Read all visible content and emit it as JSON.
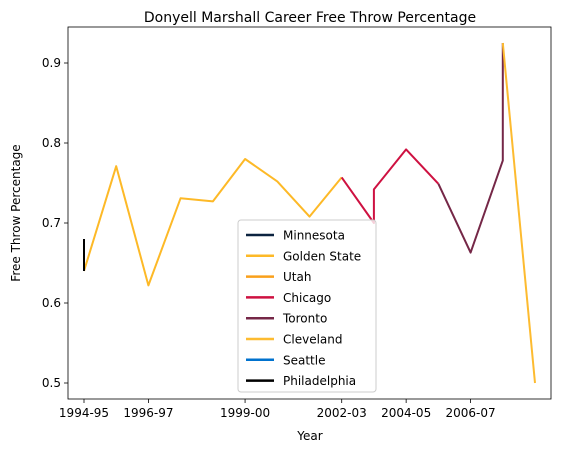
{
  "chart_data": {
    "type": "line",
    "title": "Donyell Marshall Career Free Throw Percentage",
    "xlabel": "Year",
    "ylabel": "Free Throw Percentage",
    "categories": [
      "1994-95",
      "1995-96",
      "1996-97",
      "1997-98",
      "1998-99",
      "1999-00",
      "2000-01",
      "2001-02",
      "2002-03",
      "2003-04",
      "2004-05",
      "2005-06",
      "2006-07",
      "2007-08",
      "2008-09"
    ],
    "xticks": [
      "1994-95",
      "1996-97",
      "1999-00",
      "2002-03",
      "2004-05",
      "2006-07"
    ],
    "yticks": [
      "0.5",
      "0.6",
      "0.7",
      "0.8",
      "0.9"
    ],
    "ylim": [
      0.48,
      0.945
    ],
    "legend_position": "lower center",
    "grid": false,
    "series": [
      {
        "name": "Minnesota",
        "color": "#0c2340",
        "points": [
          [
            "1994-95",
            0.68
          ],
          [
            "1994-95",
            0.64
          ]
        ]
      },
      {
        "name": "Golden State",
        "color": "#fdb927",
        "points": [
          [
            "1994-95",
            0.64
          ],
          [
            "1995-96",
            0.771
          ],
          [
            "1996-97",
            0.622
          ],
          [
            "1997-98",
            0.731
          ],
          [
            "1998-99",
            0.727
          ],
          [
            "1999-00",
            0.78
          ],
          [
            "2000-01",
            0.752
          ],
          [
            "2001-02",
            0.708
          ],
          [
            "2002-03",
            0.757
          ]
        ]
      },
      {
        "name": "Utah",
        "color": "#f9a01b",
        "points": []
      },
      {
        "name": "Chicago",
        "color": "#ce1141",
        "points": [
          [
            "2002-03",
            0.757
          ],
          [
            "2003-04",
            0.7
          ],
          [
            "2003-04",
            0.742
          ],
          [
            "2004-05",
            0.792
          ],
          [
            "2005-06",
            0.749
          ]
        ]
      },
      {
        "name": "Toronto",
        "color": "#752747",
        "points": [
          [
            "2005-06",
            0.749
          ],
          [
            "2006-07",
            0.663
          ],
          [
            "2007-08",
            0.778
          ],
          [
            "2007-08",
            0.925
          ]
        ]
      },
      {
        "name": "Cleveland",
        "color": "#fdbb30",
        "points": [
          [
            "2007-08",
            0.925
          ],
          [
            "2008-09",
            0.5
          ]
        ]
      },
      {
        "name": "Seattle",
        "color": "#0072ce",
        "points": []
      },
      {
        "name": "Philadelphia",
        "color": "#000000",
        "points": [
          [
            "1994-95",
            0.68
          ],
          [
            "1994-95",
            0.64
          ]
        ]
      }
    ]
  }
}
